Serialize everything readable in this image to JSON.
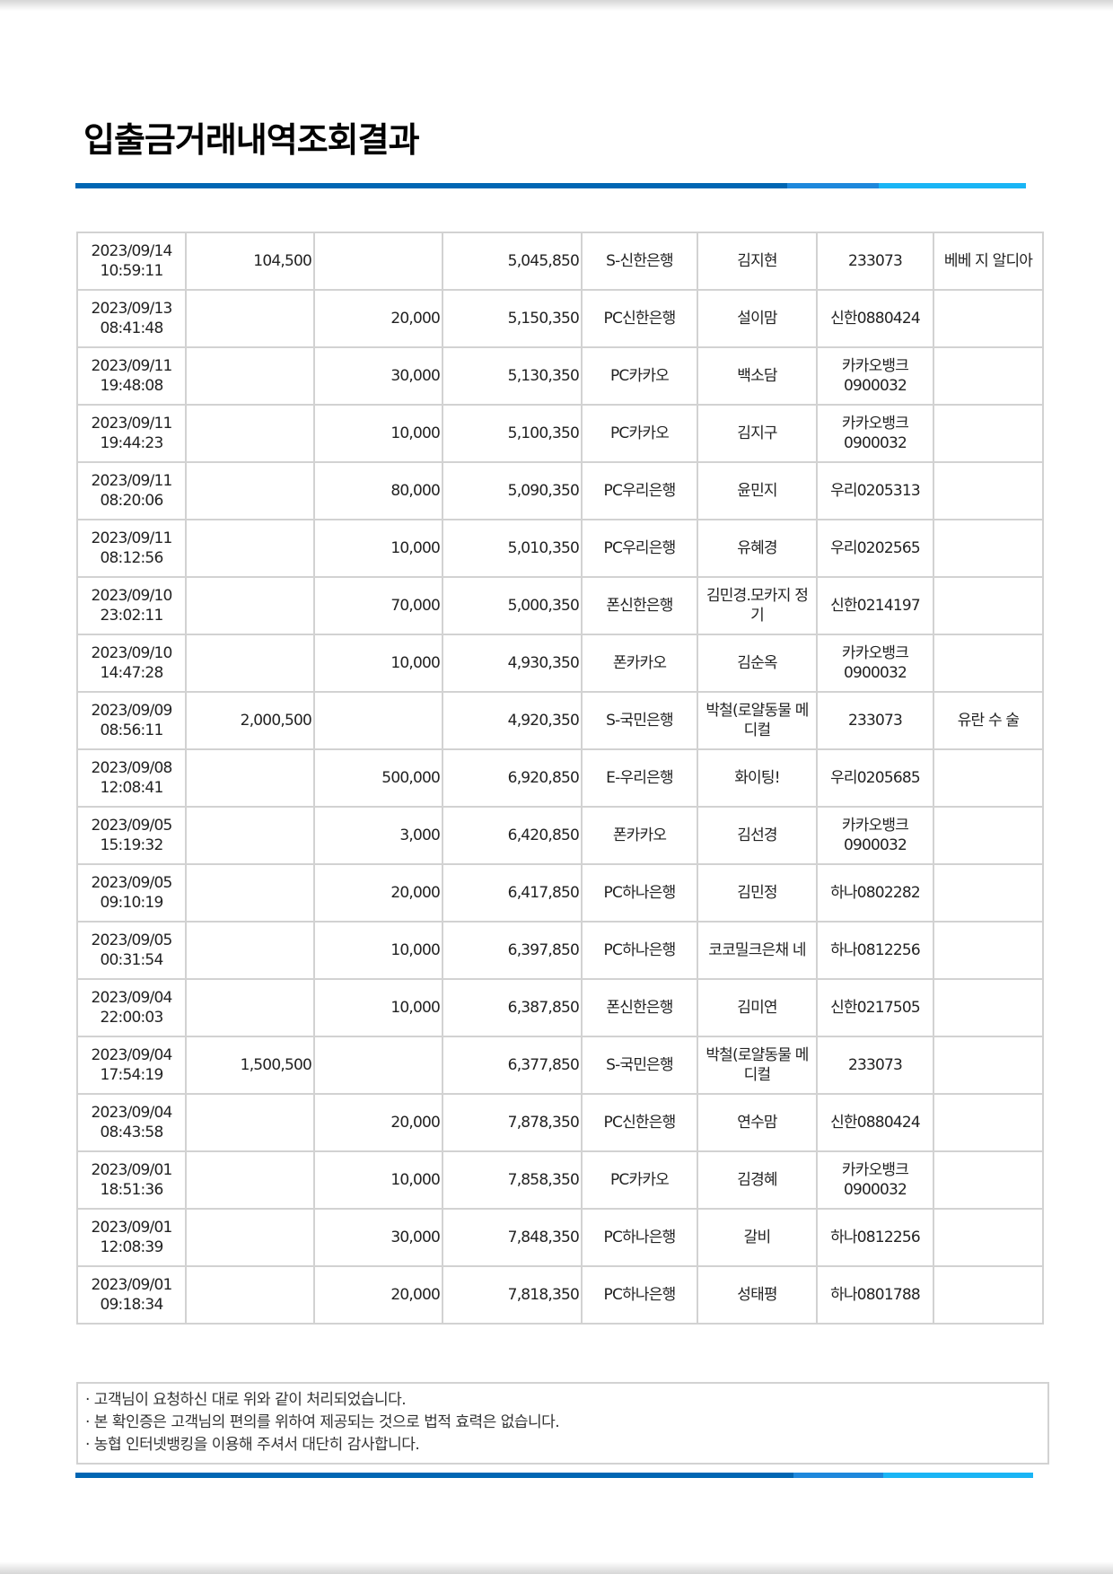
{
  "title": "입출금거래내역조회결과",
  "brand_colors": {
    "bar_dark": "#0066b3",
    "bar_mid": "#1e88dc",
    "bar_light": "#1ab5f5"
  },
  "rows": [
    {
      "date": "2023/09/14",
      "time": "10:59:11",
      "withdraw": "104,500",
      "deposit": "",
      "balance": "5,045,850",
      "channel": "S-신한은행",
      "name": "김지현",
      "account": "233073",
      "memo": "베베 지 알디아"
    },
    {
      "date": "2023/09/13",
      "time": "08:41:48",
      "withdraw": "",
      "deposit": "20,000",
      "balance": "5,150,350",
      "channel": "PC신한은행",
      "name": "설이맘",
      "account": "신한0880424",
      "memo": ""
    },
    {
      "date": "2023/09/11",
      "time": "19:48:08",
      "withdraw": "",
      "deposit": "30,000",
      "balance": "5,130,350",
      "channel": "PC카카오",
      "name": "백소담",
      "account": "카카오뱅크 0900032",
      "memo": ""
    },
    {
      "date": "2023/09/11",
      "time": "19:44:23",
      "withdraw": "",
      "deposit": "10,000",
      "balance": "5,100,350",
      "channel": "PC카카오",
      "name": "김지구",
      "account": "카카오뱅크 0900032",
      "memo": ""
    },
    {
      "date": "2023/09/11",
      "time": "08:20:06",
      "withdraw": "",
      "deposit": "80,000",
      "balance": "5,090,350",
      "channel": "PC우리은행",
      "name": "윤민지",
      "account": "우리0205313",
      "memo": ""
    },
    {
      "date": "2023/09/11",
      "time": "08:12:56",
      "withdraw": "",
      "deposit": "10,000",
      "balance": "5,010,350",
      "channel": "PC우리은행",
      "name": "유혜경",
      "account": "우리0202565",
      "memo": ""
    },
    {
      "date": "2023/09/10",
      "time": "23:02:11",
      "withdraw": "",
      "deposit": "70,000",
      "balance": "5,000,350",
      "channel": "폰신한은행",
      "name": "김민경.모카지 정기",
      "account": "신한0214197",
      "memo": ""
    },
    {
      "date": "2023/09/10",
      "time": "14:47:28",
      "withdraw": "",
      "deposit": "10,000",
      "balance": "4,930,350",
      "channel": "폰카카오",
      "name": "김순옥",
      "account": "카카오뱅크 0900032",
      "memo": ""
    },
    {
      "date": "2023/09/09",
      "time": "08:56:11",
      "withdraw": "2,000,500",
      "deposit": "",
      "balance": "4,920,350",
      "channel": "S-국민은행",
      "name": "박철(로얄동물 메디컬",
      "account": "233073",
      "memo": "유란 수 술"
    },
    {
      "date": "2023/09/08",
      "time": "12:08:41",
      "withdraw": "",
      "deposit": "500,000",
      "balance": "6,920,850",
      "channel": "E-우리은행",
      "name": "화이팅!",
      "account": "우리0205685",
      "memo": ""
    },
    {
      "date": "2023/09/05",
      "time": "15:19:32",
      "withdraw": "",
      "deposit": "3,000",
      "balance": "6,420,850",
      "channel": "폰카카오",
      "name": "김선경",
      "account": "카카오뱅크 0900032",
      "memo": ""
    },
    {
      "date": "2023/09/05",
      "time": "09:10:19",
      "withdraw": "",
      "deposit": "20,000",
      "balance": "6,417,850",
      "channel": "PC하나은행",
      "name": "김민정",
      "account": "하나0802282",
      "memo": ""
    },
    {
      "date": "2023/09/05",
      "time": "00:31:54",
      "withdraw": "",
      "deposit": "10,000",
      "balance": "6,397,850",
      "channel": "PC하나은행",
      "name": "코코밀크은채 네",
      "account": "하나0812256",
      "memo": ""
    },
    {
      "date": "2023/09/04",
      "time": "22:00:03",
      "withdraw": "",
      "deposit": "10,000",
      "balance": "6,387,850",
      "channel": "폰신한은행",
      "name": "김미연",
      "account": "신한0217505",
      "memo": ""
    },
    {
      "date": "2023/09/04",
      "time": "17:54:19",
      "withdraw": "1,500,500",
      "deposit": "",
      "balance": "6,377,850",
      "channel": "S-국민은행",
      "name": "박철(로얄동물 메디컬",
      "account": "233073",
      "memo": ""
    },
    {
      "date": "2023/09/04",
      "time": "08:43:58",
      "withdraw": "",
      "deposit": "20,000",
      "balance": "7,878,350",
      "channel": "PC신한은행",
      "name": "연수맘",
      "account": "신한0880424",
      "memo": ""
    },
    {
      "date": "2023/09/01",
      "time": "18:51:36",
      "withdraw": "",
      "deposit": "10,000",
      "balance": "7,858,350",
      "channel": "PC카카오",
      "name": "김경혜",
      "account": "카카오뱅크 0900032",
      "memo": ""
    },
    {
      "date": "2023/09/01",
      "time": "12:08:39",
      "withdraw": "",
      "deposit": "30,000",
      "balance": "7,848,350",
      "channel": "PC하나은행",
      "name": "갈비",
      "account": "하나0812256",
      "memo": ""
    },
    {
      "date": "2023/09/01",
      "time": "09:18:34",
      "withdraw": "",
      "deposit": "20,000",
      "balance": "7,818,350",
      "channel": "PC하나은행",
      "name": "성태평",
      "account": "하나0801788",
      "memo": ""
    }
  ],
  "notes": [
    "· 고객님이 요청하신 대로 위와 같이 처리되었습니다.",
    "· 본 확인증은 고객님의 편의를 위하여 제공되는 것으로 법적 효력은 없습니다.",
    "· 농협 인터넷뱅킹을 이용해 주셔서 대단히 감사합니다."
  ]
}
